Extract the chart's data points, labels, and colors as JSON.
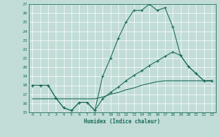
{
  "xlabel": "Humidex (Indice chaleur)",
  "background_color": "#c2ddd8",
  "line_color": "#1a6b5a",
  "grid_color": "#b0cdc8",
  "ylim": [
    15,
    27
  ],
  "xlim": [
    -0.5,
    23.5
  ],
  "yticks": [
    15,
    16,
    17,
    18,
    19,
    20,
    21,
    22,
    23,
    24,
    25,
    26,
    27
  ],
  "xticks": [
    0,
    1,
    2,
    3,
    4,
    5,
    6,
    7,
    8,
    9,
    10,
    11,
    12,
    13,
    14,
    15,
    16,
    17,
    18,
    19,
    20,
    21,
    22,
    23
  ],
  "line1_x": [
    0,
    1,
    2,
    3,
    4,
    5,
    6,
    7,
    8,
    9,
    10,
    11,
    12,
    13,
    14,
    15,
    16,
    17,
    18,
    19,
    20,
    21,
    22,
    23
  ],
  "line1_y": [
    18,
    18,
    18,
    16.6,
    15.5,
    15.2,
    16.1,
    16.1,
    15.2,
    19.0,
    21.0,
    23.2,
    25.0,
    26.3,
    26.3,
    27.0,
    26.3,
    26.6,
    24.5,
    21.3,
    20.1,
    19.3,
    18.5,
    18.5
  ],
  "line2_x": [
    0,
    1,
    2,
    3,
    4,
    5,
    6,
    7,
    8,
    9,
    10,
    11,
    12,
    13,
    14,
    15,
    16,
    17,
    18,
    19,
    20,
    21,
    22,
    23
  ],
  "line2_y": [
    18,
    18,
    18,
    16.6,
    15.5,
    15.2,
    16.1,
    16.1,
    15.2,
    16.5,
    17.2,
    17.8,
    18.5,
    19.1,
    19.6,
    20.2,
    20.7,
    21.2,
    21.7,
    21.3,
    20.1,
    19.3,
    18.5,
    18.5
  ],
  "line3_x": [
    0,
    1,
    2,
    3,
    4,
    5,
    6,
    7,
    8,
    9,
    10,
    11,
    12,
    13,
    14,
    15,
    16,
    17,
    18,
    19,
    20,
    21,
    22,
    23
  ],
  "line3_y": [
    16.5,
    16.5,
    16.5,
    16.5,
    16.5,
    16.5,
    16.5,
    16.5,
    16.5,
    16.7,
    17.0,
    17.2,
    17.5,
    17.7,
    18.0,
    18.2,
    18.4,
    18.5,
    18.5,
    18.5,
    18.5,
    18.5,
    18.5,
    18.5
  ]
}
